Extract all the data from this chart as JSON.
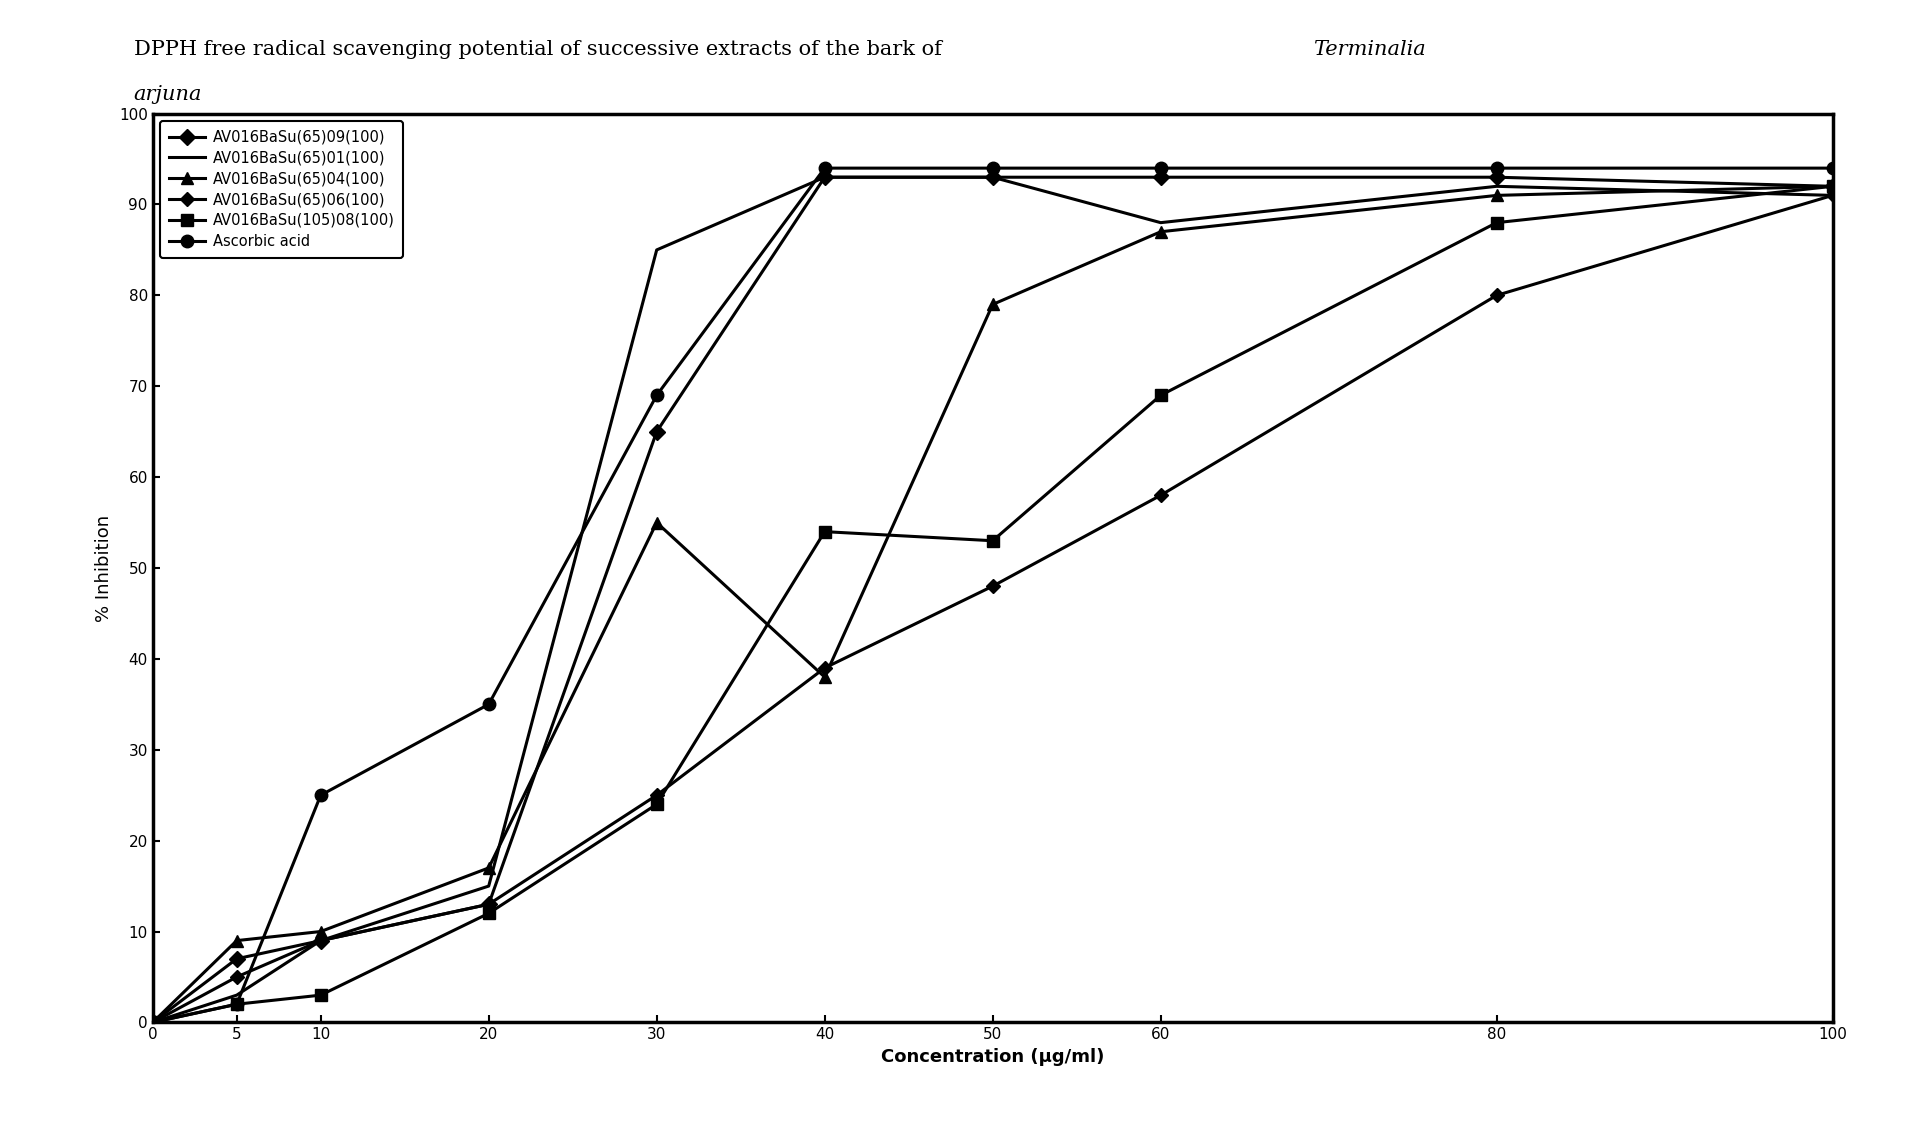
{
  "title_line1": "DPPH free radical scavenging potential of successive extracts of the bark of ",
  "title_italic": "Terminalia",
  "title_line2": "arjuna",
  "xlabel": "Concentration (μg/ml)",
  "ylabel": "% Inhibition",
  "xlim": [
    0,
    100
  ],
  "ylim": [
    0,
    100
  ],
  "xticks": [
    0,
    5,
    10,
    20,
    30,
    40,
    50,
    60,
    80,
    100
  ],
  "yticks": [
    0,
    10,
    20,
    30,
    40,
    50,
    60,
    70,
    80,
    90,
    100
  ],
  "series": [
    {
      "label": "AV016BaSu(65)09(100)",
      "marker": "D",
      "markersize": 8,
      "x": [
        0,
        5,
        10,
        20,
        30,
        40,
        50,
        60,
        80,
        100
      ],
      "y": [
        0,
        7,
        9,
        13,
        65,
        93,
        93,
        93,
        93,
        92
      ]
    },
    {
      "label": "AV016BaSu(65)01(100)",
      "marker": "none",
      "markersize": 0,
      "x": [
        0,
        5,
        10,
        20,
        30,
        40,
        50,
        60,
        80,
        100
      ],
      "y": [
        0,
        3,
        9,
        15,
        85,
        93,
        93,
        88,
        92,
        91
      ]
    },
    {
      "label": "AV016BaSu(65)04(100)",
      "marker": "^",
      "markersize": 9,
      "x": [
        0,
        5,
        10,
        20,
        30,
        40,
        50,
        60,
        80,
        100
      ],
      "y": [
        0,
        9,
        10,
        17,
        55,
        38,
        79,
        87,
        91,
        92
      ]
    },
    {
      "label": "AV016BaSu(65)06(100)",
      "marker": "D",
      "markersize": 7,
      "x": [
        0,
        5,
        10,
        20,
        30,
        40,
        50,
        60,
        80,
        100
      ],
      "y": [
        0,
        5,
        9,
        13,
        25,
        39,
        48,
        58,
        80,
        91
      ]
    },
    {
      "label": "AV016BaSu(105)08(100)",
      "marker": "s",
      "markersize": 8,
      "x": [
        0,
        5,
        10,
        20,
        30,
        40,
        50,
        60,
        80,
        100
      ],
      "y": [
        0,
        2,
        3,
        12,
        24,
        54,
        53,
        69,
        88,
        92
      ]
    },
    {
      "label": "Ascorbic acid",
      "marker": "o",
      "markersize": 9,
      "x": [
        0,
        5,
        10,
        20,
        30,
        40,
        50,
        60,
        80,
        100
      ],
      "y": [
        0,
        2,
        25,
        35,
        69,
        94,
        94,
        94,
        94,
        94
      ]
    }
  ],
  "line_color": "#000000",
  "bg_color": "#ffffff",
  "title_fontsize": 15,
  "axis_label_fontsize": 13,
  "tick_fontsize": 11,
  "legend_fontsize": 10.5
}
